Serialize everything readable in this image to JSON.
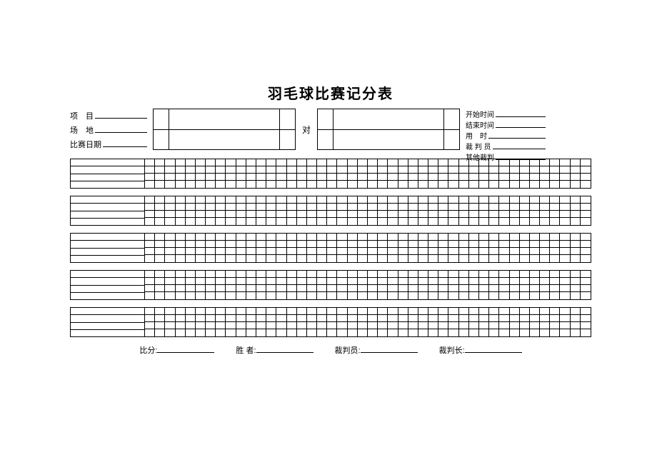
{
  "title": "羽毛球比赛记分表",
  "leftFields": {
    "event": "项　目",
    "venue": "场　地",
    "date": "比赛日期"
  },
  "vs": "对",
  "rightFields": {
    "startTime": "开始时间",
    "endTime": "结束时间",
    "duration": "用　时",
    "umpire": "裁 判 员",
    "other": "其他裁判"
  },
  "scoreBlocks": {
    "count": 5,
    "leftRows": 4,
    "gridCols": 44,
    "gridRows": 4
  },
  "footer": {
    "score": "比分:",
    "winner": "胜 者:",
    "umpire": "裁判员:",
    "referee": "裁判长:"
  },
  "style": {
    "background": "#ffffff",
    "border": "#000000",
    "text": "#000000",
    "titleFontSize": 20,
    "bodyFontSize": 11
  }
}
